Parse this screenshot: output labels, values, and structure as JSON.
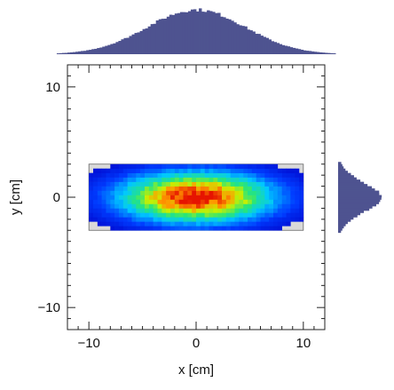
{
  "chart_data": {
    "type": "heatmap",
    "xlabel": "x [cm]",
    "ylabel": "y [cm]",
    "xlim": [
      -12,
      12
    ],
    "ylim": [
      -12,
      12
    ],
    "x_ticks": [
      -10,
      0,
      10
    ],
    "y_ticks": [
      -10,
      0,
      10
    ],
    "x_tick_labels": [
      "−10",
      "0",
      "10"
    ],
    "y_tick_labels": [
      "−10",
      "0",
      "10"
    ],
    "detector_region": {
      "x": [
        -10,
        10
      ],
      "y": [
        -3,
        3
      ],
      "fill": "#d9d9d9"
    },
    "distribution": {
      "shape": "2D gaussian clipped to detector region",
      "mean_x": 0,
      "mean_y": 0,
      "sigma_x": 5,
      "sigma_y": 1.6,
      "colormap": "rainbow (blue low → red high)"
    },
    "marginals": {
      "x_histogram": {
        "position": "top",
        "color": "#4e5390"
      },
      "y_histogram": {
        "position": "right",
        "color": "#4e5390"
      }
    }
  }
}
